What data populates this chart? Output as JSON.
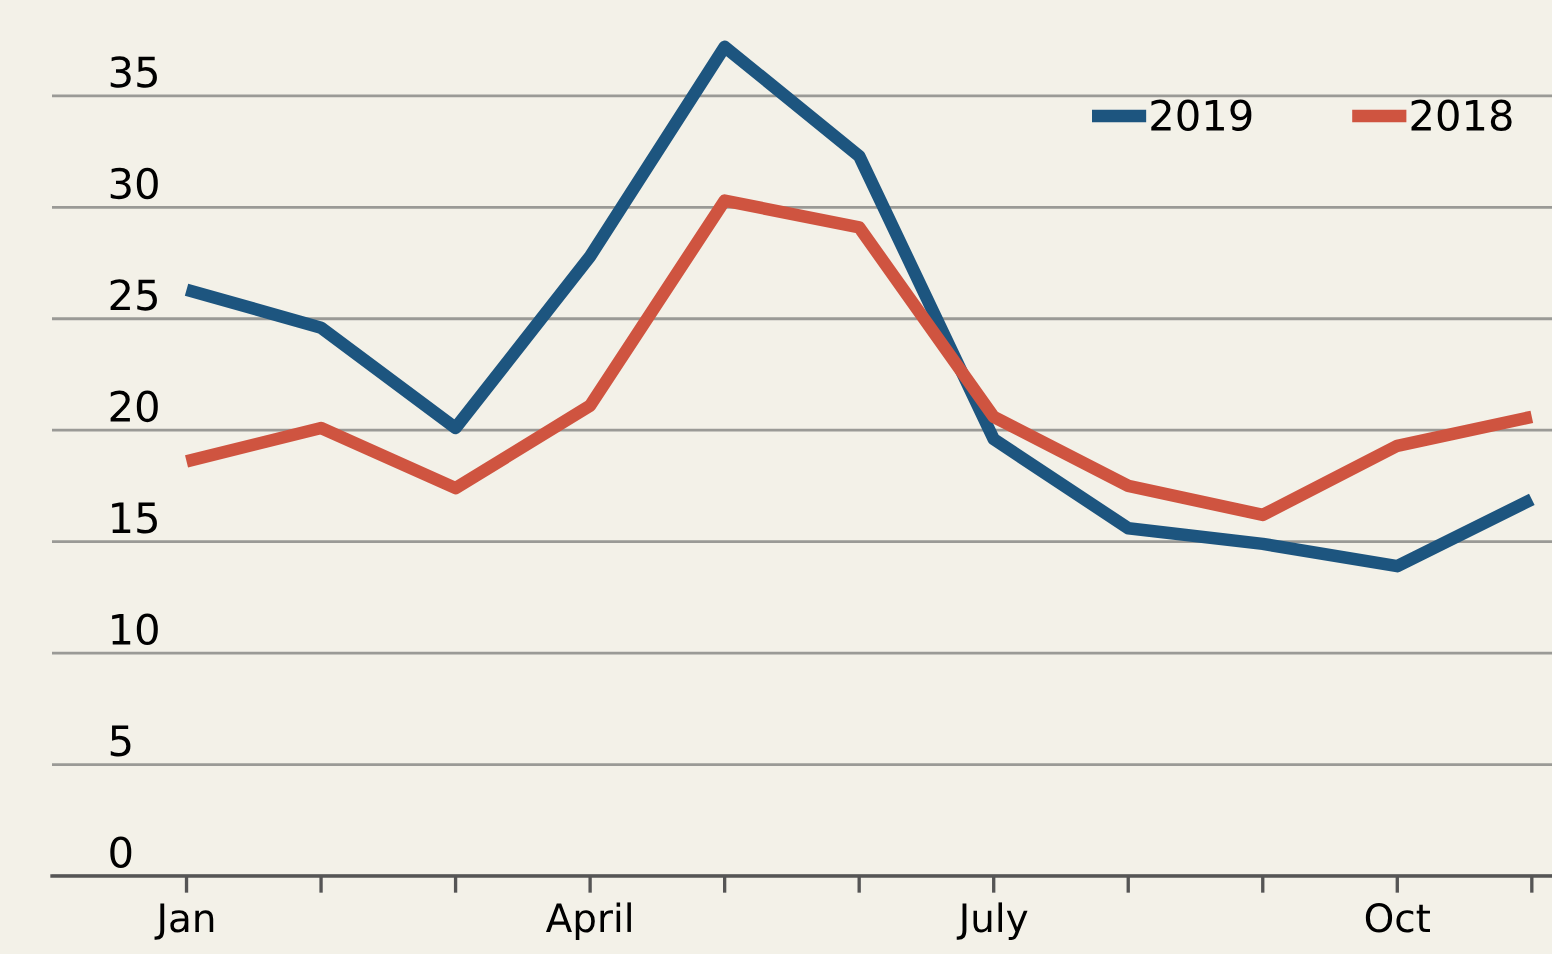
{
  "chart_data": {
    "type": "line",
    "categories": [
      "Jan",
      null,
      null,
      "April",
      null,
      null,
      "July",
      null,
      null,
      "Oct",
      null
    ],
    "series": [
      {
        "name": "2019",
        "color": "#1d557f",
        "values": [
          26.3,
          24.6,
          20.1,
          27.8,
          37.2,
          32.3,
          19.6,
          15.6,
          14.9,
          13.9,
          16.9
        ]
      },
      {
        "name": "2018",
        "color": "#cf5440",
        "values": [
          18.6,
          20.1,
          17.4,
          21.1,
          30.3,
          29.1,
          20.6,
          17.5,
          16.2,
          19.3,
          20.6
        ]
      }
    ],
    "ylim": [
      0,
      39.3
    ],
    "yticks": [
      0,
      5,
      10,
      15,
      20,
      25,
      30,
      35
    ],
    "grid": "y",
    "legend": "top right",
    "marker": "none",
    "line_style": "solid"
  }
}
